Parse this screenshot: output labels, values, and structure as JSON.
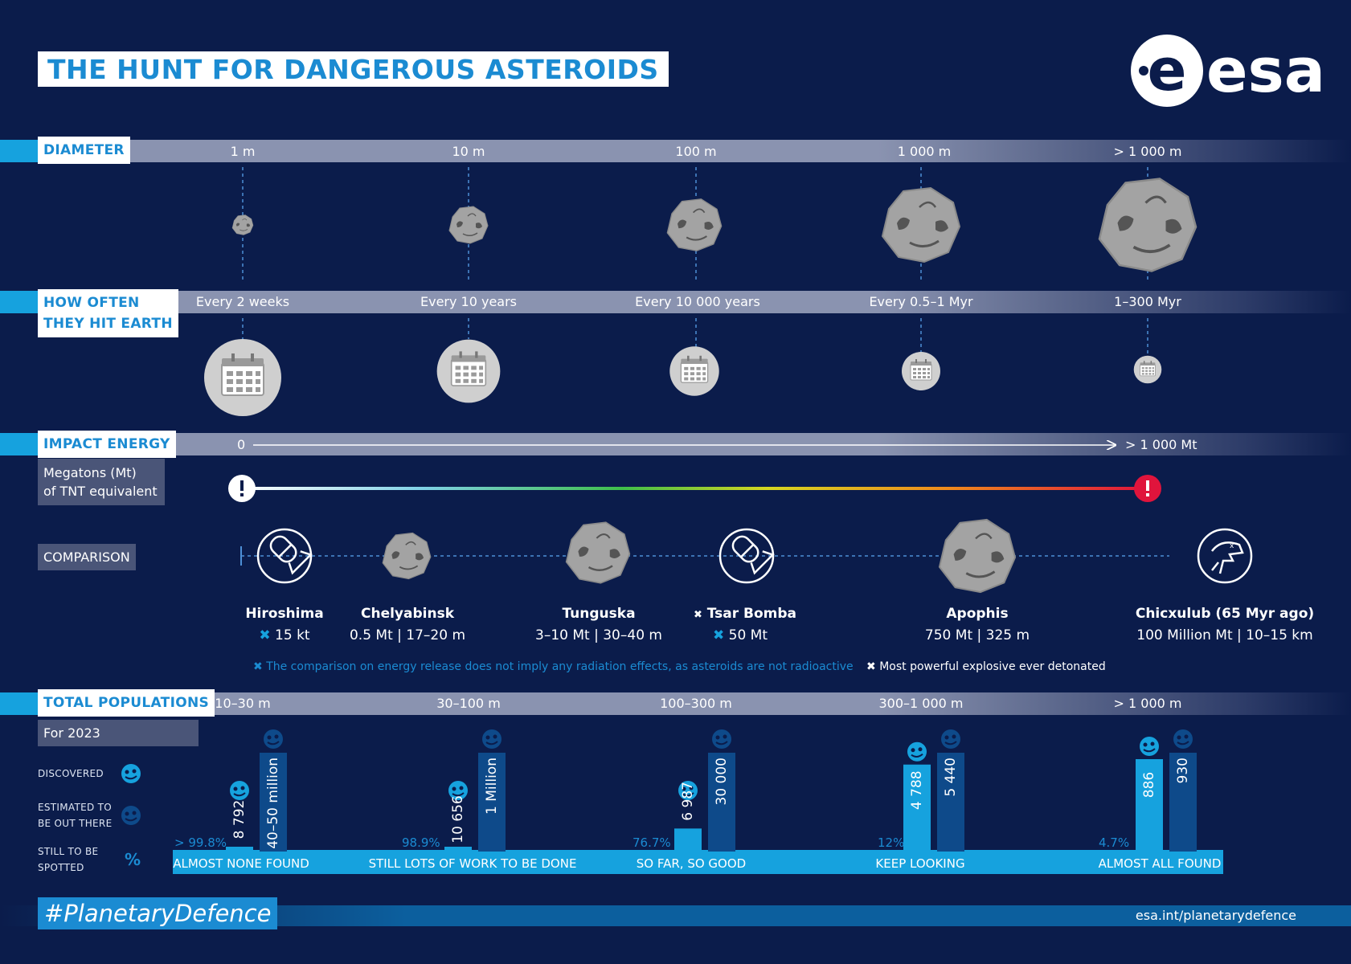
{
  "header": {
    "title": "THE HUNT FOR DANGEROUS ASTEROIDS",
    "logo_text": "esa"
  },
  "diameter": {
    "label": "DIAMETER",
    "items": [
      "1 m",
      "10 m",
      "100 m",
      "1 000 m",
      "> 1 000 m"
    ]
  },
  "frequency": {
    "label_line1": "HOW OFTEN",
    "label_line2": "THEY HIT EARTH",
    "items": [
      "Every 2 weeks",
      "Every 10 years",
      "Every 10 000 years",
      "Every 0.5–1 Myr",
      "1–300 Myr"
    ]
  },
  "energy": {
    "label": "IMPACT ENERGY",
    "sub_line1": "Megatons (Mt)",
    "sub_line2": "of TNT equivalent",
    "scale_start": "0",
    "scale_end": "> 1 000 Mt"
  },
  "comparison": {
    "label": "COMPARISON",
    "items": [
      {
        "name": "Hiroshima",
        "value": "15 kt",
        "icon": "bomb-icon"
      },
      {
        "name": "Chelyabinsk",
        "value": "0.5 Mt | 17–20 m",
        "icon": "asteroid-icon"
      },
      {
        "name": "Tunguska",
        "value": "3–10 Mt | 30–40 m",
        "icon": "asteroid-icon"
      },
      {
        "name": "Tsar Bomba",
        "value": "50 Mt",
        "icon": "bomb-icon"
      },
      {
        "name": "Apophis",
        "value": "750 Mt | 325 m",
        "icon": "asteroid-icon"
      },
      {
        "name": "Chicxulub (65 Myr ago)",
        "value": "100 Million Mt | 10–15 km",
        "icon": "dinosaur-icon"
      }
    ],
    "note_radiation": "The comparison on energy release does not imply any radiation effects, as asteroids are not radioactive",
    "note_powerful": "Most powerful explosive ever detonated"
  },
  "populations": {
    "label": "TOTAL POPULATIONS",
    "sub": "For 2023",
    "legend_discovered": "DISCOVERED",
    "legend_estimated_line1": "ESTIMATED TO",
    "legend_estimated_line2": "BE OUT THERE",
    "legend_spotted_line1": "STILL TO BE",
    "legend_spotted_line2": "SPOTTED",
    "legend_percent": "%",
    "colors": {
      "discovered": "#16a2de",
      "estimated": "#0e4a8a"
    }
  },
  "chart_data": {
    "type": "bar",
    "categories": [
      "10–30 m",
      "30–100 m",
      "100–300 m",
      "300–1 000 m",
      "> 1 000 m"
    ],
    "series": [
      {
        "name": "DISCOVERED",
        "values": [
          8792,
          10656,
          6987,
          4788,
          886
        ],
        "labels": [
          "8 792",
          "10 656",
          "6 987",
          "4 788",
          "886"
        ]
      },
      {
        "name": "ESTIMATED TO BE OUT THERE",
        "values": [
          45000000,
          1000000,
          30000,
          5440,
          930
        ],
        "labels": [
          "40–50 million",
          "1 Million",
          "30 000",
          "5 440",
          "930"
        ]
      }
    ],
    "still_to_be_spotted": [
      "> 99.8%",
      "98.9%",
      "76.7%",
      "12%",
      "4.7%"
    ],
    "verdicts": [
      "ALMOST NONE FOUND",
      "STILL LOTS OF WORK TO BE DONE",
      "SO FAR, SO GOOD",
      "KEEP LOOKING",
      "ALMOST ALL FOUND"
    ]
  },
  "footer": {
    "hashtag": "#PlanetaryDefence",
    "url": "esa.int/planetarydefence"
  }
}
